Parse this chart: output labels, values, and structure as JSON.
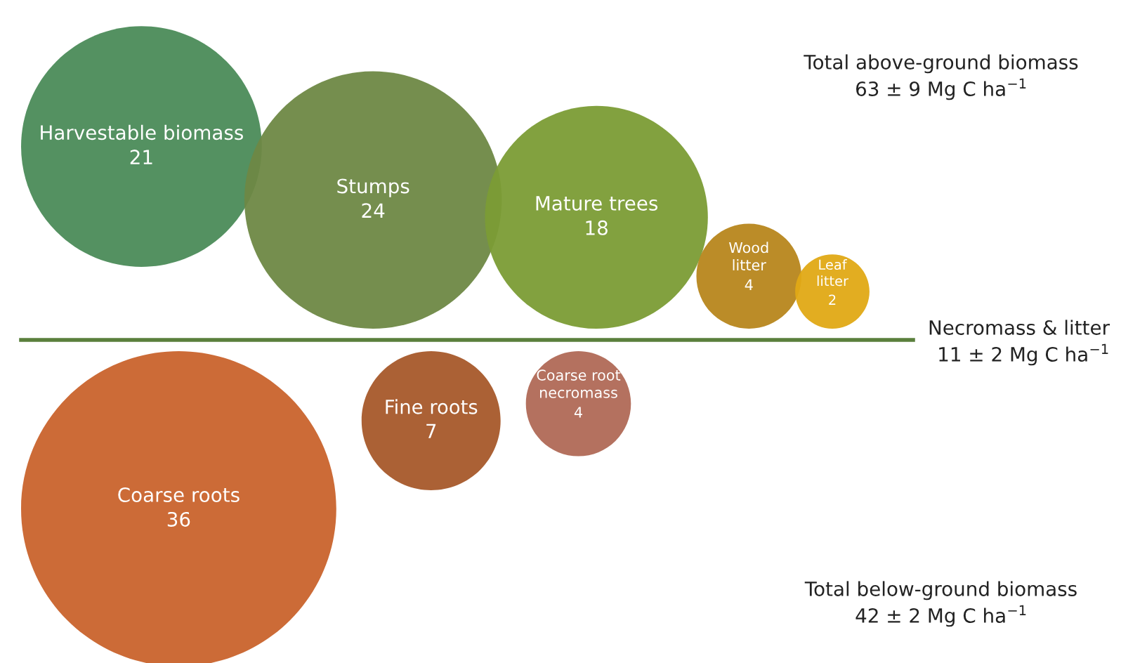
{
  "chart_data": {
    "type": "other",
    "categories": [
      "Harvestable biomass",
      "Stumps",
      "Mature trees",
      "Wood litter",
      "Leaf litter",
      "Coarse roots",
      "Fine roots",
      "Coarse root necromass"
    ],
    "series": [
      {
        "values": [
          21,
          24,
          18,
          4,
          2,
          null,
          null,
          null
        ],
        "colors": [
          "#4b8b58",
          "#6e8844",
          "#7b9c35",
          "#b7861c",
          "#e0a915",
          null,
          null,
          null
        ]
      },
      {
        "values": [
          null,
          null,
          null,
          null,
          null,
          36,
          7,
          4
        ],
        "colors": [
          null,
          null,
          null,
          null,
          null,
          "#c9632c",
          "#a6592a",
          "#b06956"
        ]
      }
    ],
    "data_labels": true,
    "ref_lines": [
      {
        "axis": "y",
        "color": "#5a7f3c",
        "label": "Necromass & litter\n11 ± 2 Mg C ha$^{−1}$"
      }
    ],
    "annotations": [
      "Total above-ground biomass\n63 ± 9 Mg C ha$^{−1}$",
      "Total below-ground biomass\n42 ± 2 Mg C ha$^{−1}$"
    ]
  }
}
